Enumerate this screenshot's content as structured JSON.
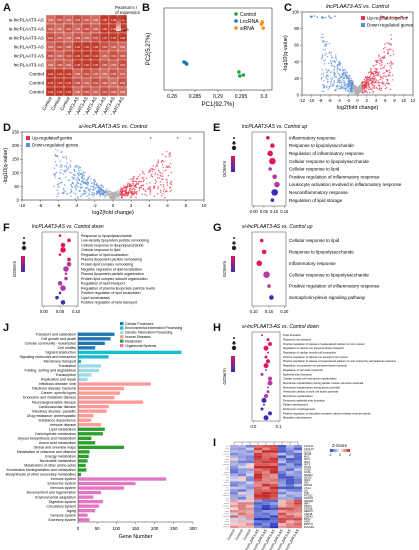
{
  "panels": {
    "A": {
      "label": "A",
      "legend_title": "Pearson's r\nof expression",
      "legend_max": "1",
      "legend_min": "0.5",
      "rows": [
        "si-lncPLAAT3-AS",
        "si-lncPLAAT3-AS",
        "si-lncPLAAT3-AS",
        "lncPLAAT3-AS",
        "lncPLAAT3-AS",
        "lncPLAAT3-AS",
        "Control",
        "Control",
        "Control"
      ],
      "cols": [
        "Control",
        "Control",
        "Control",
        "lncPLAAT3-AS",
        "lncPLAAT3-AS",
        "lncPLAAT3-AS",
        "si-lncPLAAT3-AS",
        "si-lncPLAAT3-AS",
        "si-lncPLAAT3-AS"
      ],
      "colors": {
        "high": "#c0392b",
        "low": "#f3d9d2"
      }
    },
    "B": {
      "label": "B",
      "xlabel": "PC1(92.7%)",
      "ylabel": "PC2(5.27%)",
      "xticks": [
        "0.28",
        "0.285",
        "0.29",
        "0.295",
        "0.3"
      ],
      "legend": [
        {
          "name": "Control",
          "color": "#2aa04a"
        },
        {
          "name": "LncRNA",
          "color": "#1f77b4"
        },
        {
          "name": "siRNA",
          "color": "#ff8c1a"
        }
      ]
    },
    "C": {
      "label": "C",
      "title": "lncPLAAT3-AS vs. Control",
      "xlabel": "log2(fold change)",
      "ylabel": "-log10(q-value)",
      "xticks": [
        "-12",
        "-10",
        "-8",
        "-6",
        "-4",
        "-2",
        "0",
        "2",
        "4",
        "6",
        "8",
        "10",
        "12"
      ],
      "yticks": [
        "0",
        "20",
        "40",
        "60",
        "80",
        "100"
      ],
      "legend": [
        {
          "name": "Up-regulated genes",
          "color": "#e8334a"
        },
        {
          "name": "Down-regulated genes",
          "color": "#5b8fd6"
        }
      ]
    },
    "D": {
      "label": "D",
      "title": "si-lncPLAAT3-AS vs. Control",
      "xlabel": "log2(fold change)",
      "ylabel": "-log10(q-value)",
      "xticks": [
        "-10",
        "-8",
        "-6",
        "-4",
        "-2",
        "0",
        "2",
        "4",
        "6",
        "8",
        "10"
      ],
      "yticks": [
        "0",
        "50",
        "100",
        "150",
        "200",
        "250"
      ],
      "legend": [
        {
          "name": "Up-regulated genes",
          "color": "#e8334a"
        },
        {
          "name": "Down-regulated genes",
          "color": "#5b8fd6"
        }
      ]
    },
    "E": {
      "label": "E",
      "title": "lncPLAAT3-AS vs. Control up",
      "ylabel": "GOterm",
      "xticks": [
        "0.00",
        "0.05",
        "0.10",
        "0.15"
      ],
      "terms": [
        "Inflammatory response",
        "Response to lipopolysaccharide",
        "Regulation of inflammatory response",
        "Cellular response to lipopolysaccharide",
        "Cellular response to lipid",
        "Positive regulation of inflammatory response",
        "Leukocyte activation involved in inflammatory response",
        "Neuroinflammatory response",
        "Regulation of lipid storage"
      ],
      "rich": [
        0.07,
        0.09,
        0.08,
        0.09,
        0.08,
        0.1,
        0.11,
        0.1,
        0.09
      ]
    },
    "F": {
      "label": "F",
      "title": "lncPLAAT3-AS vs. Control down",
      "ylabel": "GOterm",
      "xticks": [
        "0.00",
        "0.05",
        "0.10"
      ],
      "terms": [
        "Response to lipopolysaccharide",
        "Low-density lipoprotein particle remodeling",
        "Cellular response to lipopolysaccharide",
        "Cellular response to lipid",
        "Regulation of lipid localization",
        "Plasma lipoprotein particle remodeling",
        "Protein-lipid complex remodeling",
        "Negative regulation of lipid localization",
        "Plasma lipoprotein particle organization",
        "Protein-lipid complex subunit organization",
        "Regulation of lipid transport",
        "Regulation of plasma lipoprotein particle levels",
        "Positive regulation of lipid localization",
        "Lipid homeostasis",
        "Positive regulation of lipid transport"
      ],
      "rich": [
        0.06,
        0.09,
        0.07,
        0.07,
        0.06,
        0.09,
        0.09,
        0.08,
        0.08,
        0.08,
        0.06,
        0.07,
        0.06,
        0.05,
        0.07
      ]
    },
    "G": {
      "label": "G",
      "title": "si-lncPLAAT3-AS vs. Control up",
      "ylabel": "GOterm",
      "xticks": [
        "0.10",
        "0.15",
        "0.20"
      ],
      "terms": [
        "Cellular response to lipid",
        "Response to lipopolysaccharide",
        "Inflammatory response",
        "Cellular response to lipopolysaccharide",
        "Positive regulation of inflammatory response",
        "Semaphorin-plexin signaling pathway"
      ],
      "rich": [
        0.12,
        0.13,
        0.11,
        0.14,
        0.15,
        0.16
      ]
    },
    "H": {
      "label": "H",
      "title": "si-lncPLAAT3-AS vs. Control down",
      "ylabel": "GOterm",
      "xticks": [
        "0.0",
        "0.1"
      ],
      "terms": [
        "Tube formation",
        "Potassium ion transport",
        "Positive regulation of release of sequestered calcium ion into cytosol",
        "Regulation of calcium ion transmembrane transport",
        "Regulation of cardiac muscle cell contraction",
        "Positive regulation of calcium ion transport into cytosol",
        "Positive regulation of release of sequestered calcium ion into cytosol by sarcoplasmic reticulum",
        "Regulation of potassium ion transmembrane transport",
        "Regulation of cell action potential",
        "Epithelial tube formation",
        "Cardiac muscle cell membrane repolarization",
        "Membrane repolarization during cardiac muscle cell action potential",
        "Membrane repolarization during action potential",
        "Ventricular cardiac muscle cell action potential",
        "Membrane repolarization",
        "Embryonic epithelial tube formation",
        "Pattern development",
        "Embryonic morphogenesis",
        "Positive regulation of ryanodine-sensitive calcium-release channel activity",
        "Mesoderm development"
      ],
      "rich": [
        0.05,
        0.08,
        0.09,
        0.07,
        0.08,
        0.07,
        0.08,
        0.07,
        0.07,
        0.05,
        0.09,
        0.09,
        0.08,
        0.08,
        0.07,
        0.06,
        0.06,
        0.05,
        0.09,
        0.07
      ]
    },
    "I": {
      "label": "I",
      "legend_title": "Z-Score",
      "legend_ticks": [
        "-2",
        "0",
        "2"
      ],
      "genes": [
        "CXCL11",
        "CXCL10",
        "CCL5",
        "ISG15",
        "MX1",
        "IFIT1",
        "IFIT2",
        "IFIT3",
        "OAS1",
        "OAS2",
        "OASL",
        "RSAD2",
        "ISG20",
        "IFI44",
        "IFI6",
        "IFITM1",
        "CCL2",
        "IL6",
        "TNF",
        "PTGS2",
        "SOCS3",
        "NFKBIA",
        "IRF7",
        "STAT1",
        "DDX58",
        "HERC5",
        "USP18",
        "CMPK2",
        "BST2",
        "XAF1",
        "EPSTI1",
        "PLSCR1"
      ],
      "cols": [
        "Control",
        "Control",
        "Control",
        "lncPLAAT3-AS",
        "lncPLAAT3-AS",
        "lncPLAAT3-AS",
        "si-lncPLAAT3-AS",
        "si-lncPLAAT3-AS",
        "si-lncPLAAT3-AS"
      ]
    },
    "J": {
      "label": "J",
      "xlabel": "Gene Number",
      "xticks": [
        "0",
        "50",
        "100",
        "150",
        "200",
        "250",
        "300"
      ],
      "legend": [
        {
          "name": "Cellular Processes",
          "color": "#1f77b4"
        },
        {
          "name": "Environmental Information Processing",
          "color": "#17becf"
        },
        {
          "name": "Genetic Information Processing",
          "color": "#9edae5"
        },
        {
          "name": "Human Diseases",
          "color": "#ff9896"
        },
        {
          "name": "Metabolism",
          "color": "#2ca02c"
        },
        {
          "name": "Organismal Systems",
          "color": "#e377c2"
        }
      ],
      "bars": [
        {
          "name": "Transport and catabolism",
          "v": 95,
          "g": 0
        },
        {
          "name": "Cell growth and death",
          "v": 85,
          "g": 0
        },
        {
          "name": "Cellular community - eukaryotes",
          "v": 70,
          "g": 0
        },
        {
          "name": "Cell motility",
          "v": 45,
          "g": 0
        },
        {
          "name": "Signal transduction",
          "v": 270,
          "g": 1
        },
        {
          "name": "Signaling molecules and interaction",
          "v": 80,
          "g": 1
        },
        {
          "name": "Membrane transport",
          "v": 8,
          "g": 1
        },
        {
          "name": "Translation",
          "v": 60,
          "g": 2
        },
        {
          "name": "Folding, sorting and degradation",
          "v": 55,
          "g": 2
        },
        {
          "name": "Transcription",
          "v": 35,
          "g": 2
        },
        {
          "name": "Replication and repair",
          "v": 25,
          "g": 2
        },
        {
          "name": "Infectious disease: viral",
          "v": 190,
          "g": 3
        },
        {
          "name": "Infectious disease: bacterial",
          "v": 120,
          "g": 3
        },
        {
          "name": "Cancer: specific types",
          "v": 110,
          "g": 3
        },
        {
          "name": "Endocrine and metabolic disease",
          "v": 95,
          "g": 3
        },
        {
          "name": "Neurodegenerative disease",
          "v": 170,
          "g": 3
        },
        {
          "name": "Cardiovascular disease",
          "v": 80,
          "g": 3
        },
        {
          "name": "Infectious disease: parasitic",
          "v": 75,
          "g": 3
        },
        {
          "name": "Drug resistance: antineoplastic",
          "v": 40,
          "g": 3
        },
        {
          "name": "Substance dependence",
          "v": 35,
          "g": 3
        },
        {
          "name": "Immune disease",
          "v": 60,
          "g": 3
        },
        {
          "name": "Lipid metabolism",
          "v": 70,
          "g": 4
        },
        {
          "name": "Carbohydrate metabolism",
          "v": 65,
          "g": 4
        },
        {
          "name": "Glycan biosynthesis and metabolism",
          "v": 35,
          "g": 4
        },
        {
          "name": "Amino acid metabolism",
          "v": 45,
          "g": 4
        },
        {
          "name": "Global and overview maps",
          "v": 120,
          "g": 4
        },
        {
          "name": "Metabolism of cofactors and vitamins",
          "v": 30,
          "g": 4
        },
        {
          "name": "Energy metabolism",
          "v": 28,
          "g": 4
        },
        {
          "name": "Nucleotide metabolism",
          "v": 25,
          "g": 4
        },
        {
          "name": "Metabolism of other amino acids",
          "v": 20,
          "g": 4
        },
        {
          "name": "Xenobiotics biodegradation and metabolism",
          "v": 22,
          "g": 4
        },
        {
          "name": "Biosynthesis of other secondary metabolites",
          "v": 8,
          "g": 4
        },
        {
          "name": "Immune system",
          "v": 230,
          "g": 5
        },
        {
          "name": "Endocrine system",
          "v": 150,
          "g": 5
        },
        {
          "name": "Nervous system",
          "v": 120,
          "g": 5
        },
        {
          "name": "Development and regeneration",
          "v": 60,
          "g": 5
        },
        {
          "name": "Environmental adaptation",
          "v": 40,
          "g": 5
        },
        {
          "name": "Digestive system",
          "v": 65,
          "g": 5
        },
        {
          "name": "Circulatory system",
          "v": 55,
          "g": 5
        },
        {
          "name": "Aging",
          "v": 45,
          "g": 5
        },
        {
          "name": "Sensory system",
          "v": 25,
          "g": 5
        },
        {
          "name": "Excretory system",
          "v": 30,
          "g": 5
        }
      ]
    }
  },
  "colors": {
    "heat_high": "#c0392b",
    "gobar_high": "#e0185c",
    "gobar_low": "#3d2bb6"
  }
}
